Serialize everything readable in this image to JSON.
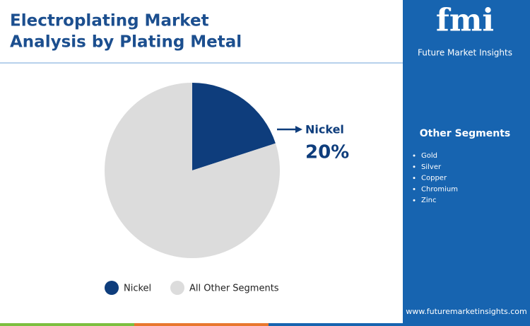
{
  "chart_data": {
    "type": "pie",
    "title": "Electroplating Market Analysis by Plating Metal",
    "categories": [
      "Nickel",
      "All Other Segments"
    ],
    "values": [
      20,
      80
    ],
    "value_labels": [
      "20%",
      null
    ],
    "colors": [
      "#0e3d7c",
      "#dcdcdc"
    ],
    "legend": "bottom"
  },
  "brand": {
    "logo": "fmi",
    "name": "Future Market Insights"
  },
  "sidebar": {
    "heading": "Other Segments",
    "items": [
      "Gold",
      "Silver",
      "Copper",
      "Chromium",
      "Zinc"
    ]
  },
  "footer": {
    "url": "www.futuremarketinsights.com"
  }
}
